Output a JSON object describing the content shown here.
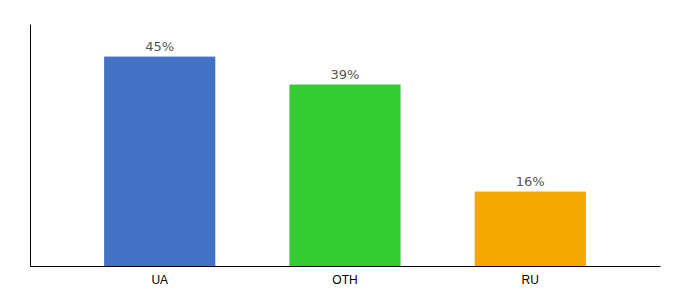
{
  "chart_data": {
    "type": "bar",
    "categories": [
      "UA",
      "OTH",
      "RU"
    ],
    "values": [
      45,
      39,
      16
    ],
    "value_labels": [
      "45%",
      "39%",
      "16%"
    ],
    "colors": [
      "#4472c4",
      "#33cc33",
      "#f5a800"
    ],
    "ylim": [
      0,
      52
    ],
    "yticks": [],
    "tick_labels": "x",
    "grid": false
  }
}
